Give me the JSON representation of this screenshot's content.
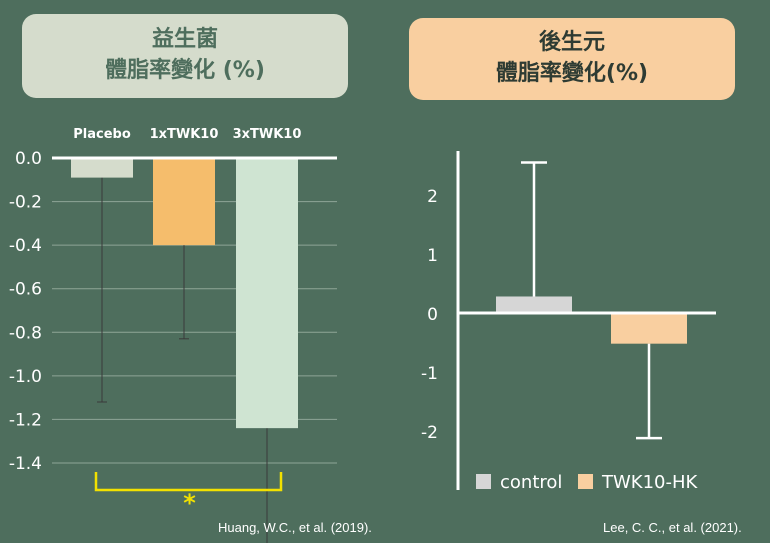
{
  "panels": {
    "left": {
      "title_line1": "益生菌",
      "title_line2": "體脂率變化 (%)",
      "citation": "Huang, W.C., et al. (2019)."
    },
    "right": {
      "title_line1": "後生元",
      "title_line2": "體脂率變化(%)",
      "citation": "Lee, C. C., et al. (2021)."
    }
  },
  "chart_data": [
    {
      "type": "bar",
      "categories": [
        "Placebo",
        "1xTWK10",
        "3xTWK10"
      ],
      "values": [
        -0.09,
        -0.4,
        -1.24
      ],
      "error_low": [
        -1.12,
        -0.83,
        -1.8
      ],
      "ylim": [
        -1.4,
        0.0
      ],
      "yticks": [
        "0.0",
        "-0.2",
        "-0.4",
        "-0.6",
        "-0.8",
        "-1.0",
        "-1.2",
        "-1.4"
      ],
      "ytick_values": [
        0.0,
        -0.2,
        -0.4,
        -0.6,
        -0.8,
        -1.0,
        -1.2,
        -1.4
      ],
      "colors": [
        "#d5dccc",
        "#f5bd6c",
        "#cfe4d2"
      ],
      "grid": true,
      "significance": {
        "between": [
          "Placebo",
          "3xTWK10"
        ],
        "label": "*",
        "color": "#f2e100"
      }
    },
    {
      "type": "bar",
      "categories": [
        "control",
        "TWK10-HK"
      ],
      "values": [
        0.28,
        -0.52
      ],
      "error_high": [
        2.55,
        null
      ],
      "error_low": [
        null,
        -2.12
      ],
      "ylim": [
        -2.5,
        2.5
      ],
      "yticks": [
        "2",
        "1",
        "0",
        "-1",
        "-2"
      ],
      "ytick_values": [
        2,
        1,
        0,
        -1,
        -2
      ],
      "colors": [
        "#d6d6d6",
        "#f9cfa0"
      ],
      "legend": {
        "position": "bottom",
        "entries": [
          "control",
          "TWK10-HK"
        ]
      }
    }
  ]
}
